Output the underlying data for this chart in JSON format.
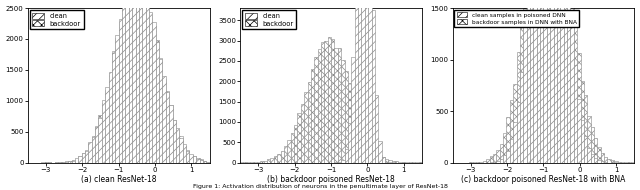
{
  "fig_width": 6.4,
  "fig_height": 1.9,
  "dpi": 100,
  "panels": [
    {
      "title": "(a) clean ResNet-18",
      "legend": [
        "clean",
        "backdoor"
      ],
      "clean_mean": -0.5,
      "clean_std": 0.6,
      "clean_n": 50000,
      "backdoor_mean": -0.5,
      "backdoor_std": 0.6,
      "backdoor_n": 50000,
      "xlim": [
        -3.5,
        1.5
      ],
      "ylim": [
        0,
        2500
      ],
      "yticks": [
        0,
        500,
        1000,
        1500,
        2000,
        2500
      ],
      "xticks": [
        -3,
        -2,
        -1,
        0,
        1
      ]
    },
    {
      "title": "(b) backdoor poisoned ResNet-18",
      "legend": [
        "clean",
        "backdoor"
      ],
      "clean_mean": -0.1,
      "clean_std": 0.18,
      "clean_n": 50000,
      "backdoor_mean": -1.05,
      "backdoor_std": 0.6,
      "backdoor_n": 50000,
      "xlim": [
        -3.5,
        1.5
      ],
      "ylim": [
        0,
        3800
      ],
      "yticks": [
        0,
        500,
        1000,
        1500,
        2000,
        2500,
        3000,
        3500
      ],
      "xticks": [
        -3,
        -2,
        -1,
        0,
        1
      ]
    },
    {
      "title": "(c) backdoor poisoned ResNet-18 with BNA",
      "legend": [
        "clean samples in poisoned DNN",
        "backdoor samples in DNN with BNA"
      ],
      "clean_mean": -0.85,
      "clean_std": 0.42,
      "clean_n": 50000,
      "backdoor_mean": -0.85,
      "backdoor_std": 0.55,
      "backdoor_n": 50000,
      "xlim": [
        -3.5,
        1.5
      ],
      "ylim": [
        0,
        1500
      ],
      "yticks": [
        0,
        500,
        1000,
        1500
      ],
      "xticks": [
        -3,
        -2,
        -1,
        0,
        1
      ]
    }
  ],
  "hatch_clean": "////",
  "hatch_backdoor": "xxxx",
  "edgecolor": "#888888",
  "linewidth": 0.4,
  "bins": 55,
  "seed": 12
}
